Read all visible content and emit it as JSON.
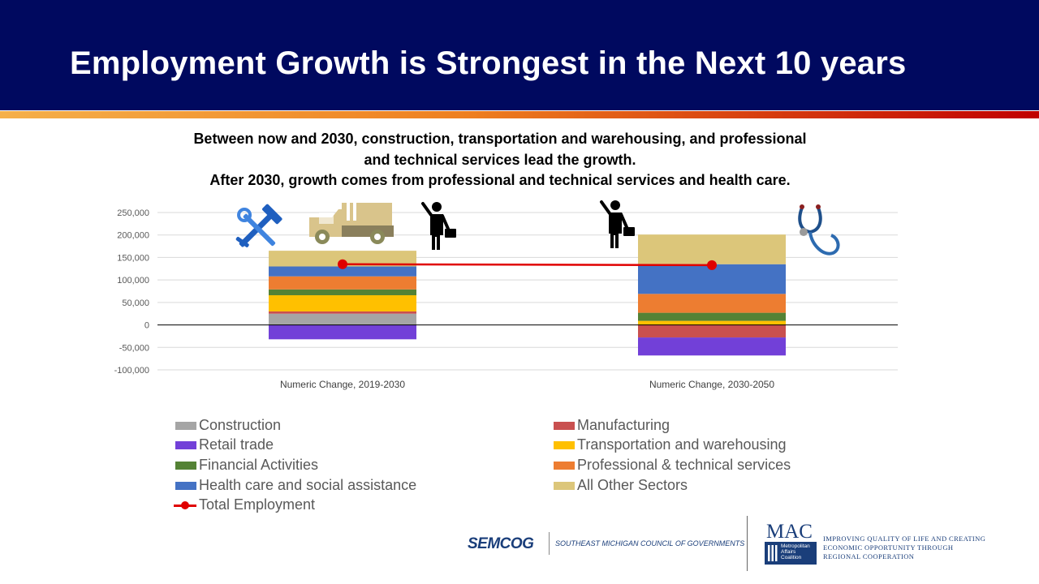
{
  "slide": {
    "title": "Employment Growth is Strongest in the Next 10 years",
    "subtitle_lines": [
      "Between now and 2030, construction, transportation and warehousing, and professional",
      "and technical services lead the growth.",
      "After 2030, growth comes from professional and technical services and health care."
    ]
  },
  "icons": [
    "tools-icon",
    "truck-icon",
    "businessman-icon",
    "businessman-icon",
    "stethoscope-icon"
  ],
  "chart_data": {
    "type": "bar",
    "stacked": true,
    "categories": [
      "Numeric Change, 2019-2030",
      "Numeric Change, 2030-2050"
    ],
    "ylim": [
      -100000,
      250000
    ],
    "yticks": [
      -100000,
      -50000,
      0,
      50000,
      100000,
      150000,
      200000,
      250000
    ],
    "ytick_labels": [
      "-100,000",
      "-50,000",
      "0",
      "50,000",
      "100,000",
      "150,000",
      "200,000",
      "250,000"
    ],
    "grid": true,
    "legend_position": "bottom",
    "series": [
      {
        "name": "Construction",
        "color": "#a5a5a5",
        "values": [
          25000,
          0
        ]
      },
      {
        "name": "Manufacturing",
        "color": "#c9504f",
        "values": [
          5000,
          -28000
        ]
      },
      {
        "name": "Retail trade",
        "color": "#7240d8",
        "values": [
          -32000,
          -40000
        ]
      },
      {
        "name": "Transportation and warehousing",
        "color": "#ffc000",
        "values": [
          36000,
          9000
        ]
      },
      {
        "name": "Financial Activities",
        "color": "#548235",
        "values": [
          13000,
          18000
        ]
      },
      {
        "name": "Professional & technical services",
        "color": "#ed7d31",
        "values": [
          29000,
          42000
        ]
      },
      {
        "name": "Health care and social assistance",
        "color": "#4472c4",
        "values": [
          22000,
          66000
        ]
      },
      {
        "name": "All Other Sectors",
        "color": "#dcc67a",
        "values": [
          35000,
          66000
        ]
      }
    ],
    "line_series": {
      "name": "Total Employment",
      "color": "#e00000",
      "values": [
        135000,
        133000
      ]
    }
  },
  "footer": {
    "semcog": "SEMCOG",
    "semcog_full": "SOUTHEAST MICHIGAN COUNCIL OF GOVERNMENTS",
    "mac": "MAC",
    "mac_full": [
      "Metropolitan",
      "Affairs",
      "Coalition"
    ],
    "mac_tagline": [
      "IMPROVING QUALITY OF LIFE AND CREATING",
      "ECONOMIC OPPORTUNITY THROUGH",
      "REGIONAL COOPERATION"
    ]
  }
}
